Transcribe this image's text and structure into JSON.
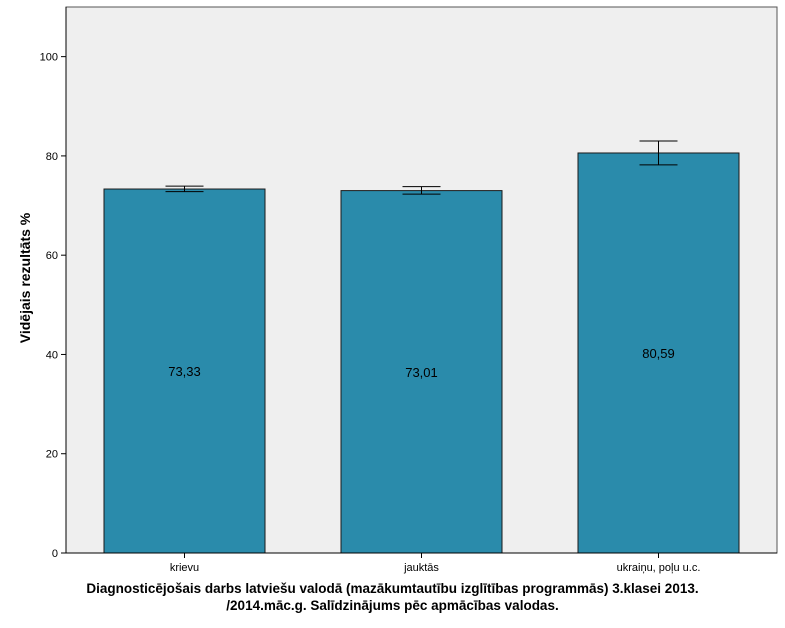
{
  "chart_data": {
    "type": "bar",
    "categories": [
      "krievu",
      "jauktās",
      "ukraiņu, poļu u.c."
    ],
    "values": [
      73.33,
      73.01,
      80.59
    ],
    "data_labels": [
      "73,33",
      "73,01",
      "80,59"
    ],
    "error_bars": [
      {
        "low": 72.8,
        "high": 73.9
      },
      {
        "low": 72.3,
        "high": 73.8
      },
      {
        "low": 78.2,
        "high": 83.0
      }
    ],
    "title": "",
    "xlabel_lines": [
      "Diagnosticējošais darbs latviešu valodā (mazākumtautību izglītības programmās) 3.klasei 2013.",
      "/2014.māc.g. Salīdzinājums pēc apmācības valodas."
    ],
    "ylabel": "Vidējais rezultāts %",
    "ylim": [
      0,
      110
    ],
    "yticks": [
      0,
      20,
      40,
      60,
      80,
      100
    ],
    "grid": false,
    "legend": "none",
    "colors": {
      "bar": "#2a8bab",
      "bar_edge": "#1a1a1a",
      "plot_background": "#efefef",
      "frame": "#555555"
    }
  }
}
